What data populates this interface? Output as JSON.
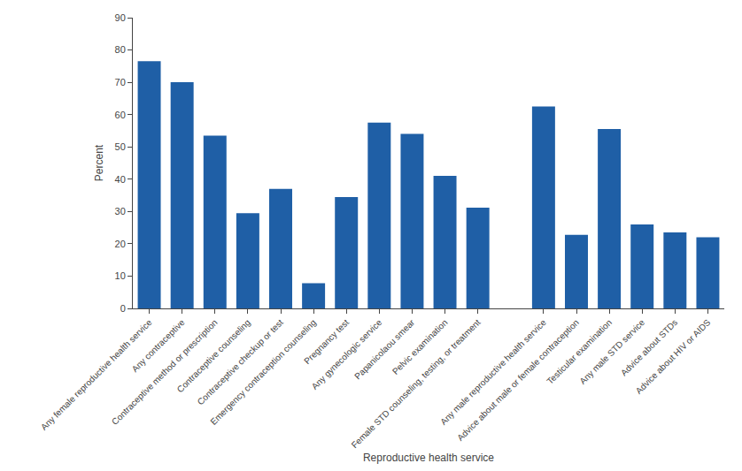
{
  "chart_data": {
    "type": "bar",
    "categories": [
      "Any female reproductive health service",
      "Any contraceptive",
      "Contraceptive method or prescription",
      "Contraceptive counseling",
      "Contraceptive checkup or test",
      "Emergency contraception counseling",
      "Pregnancy test",
      "Any gynecologic service",
      "Papanicolaou smear",
      "Pelvic examination",
      "Female STD counseling, testing, or treatment",
      null,
      "Any male reproductive health service",
      "Advice about male or female contraception",
      "Testicular examination",
      "Any male STD service",
      "Advice about STDs",
      "Advice about HIV or AIDS"
    ],
    "values": [
      76.5,
      70.0,
      53.5,
      29.5,
      37.0,
      7.8,
      34.5,
      57.5,
      54.0,
      41.0,
      31.2,
      null,
      62.5,
      22.8,
      55.5,
      26.0,
      23.5,
      22.0
    ],
    "color": "#1f5fa6",
    "xlabel": "Reproductive health service",
    "ylabel": "Percent",
    "ylim": [
      0,
      90
    ],
    "yticks": [
      0,
      10,
      20,
      30,
      40,
      50,
      60,
      70,
      80,
      90
    ],
    "grid": false
  }
}
